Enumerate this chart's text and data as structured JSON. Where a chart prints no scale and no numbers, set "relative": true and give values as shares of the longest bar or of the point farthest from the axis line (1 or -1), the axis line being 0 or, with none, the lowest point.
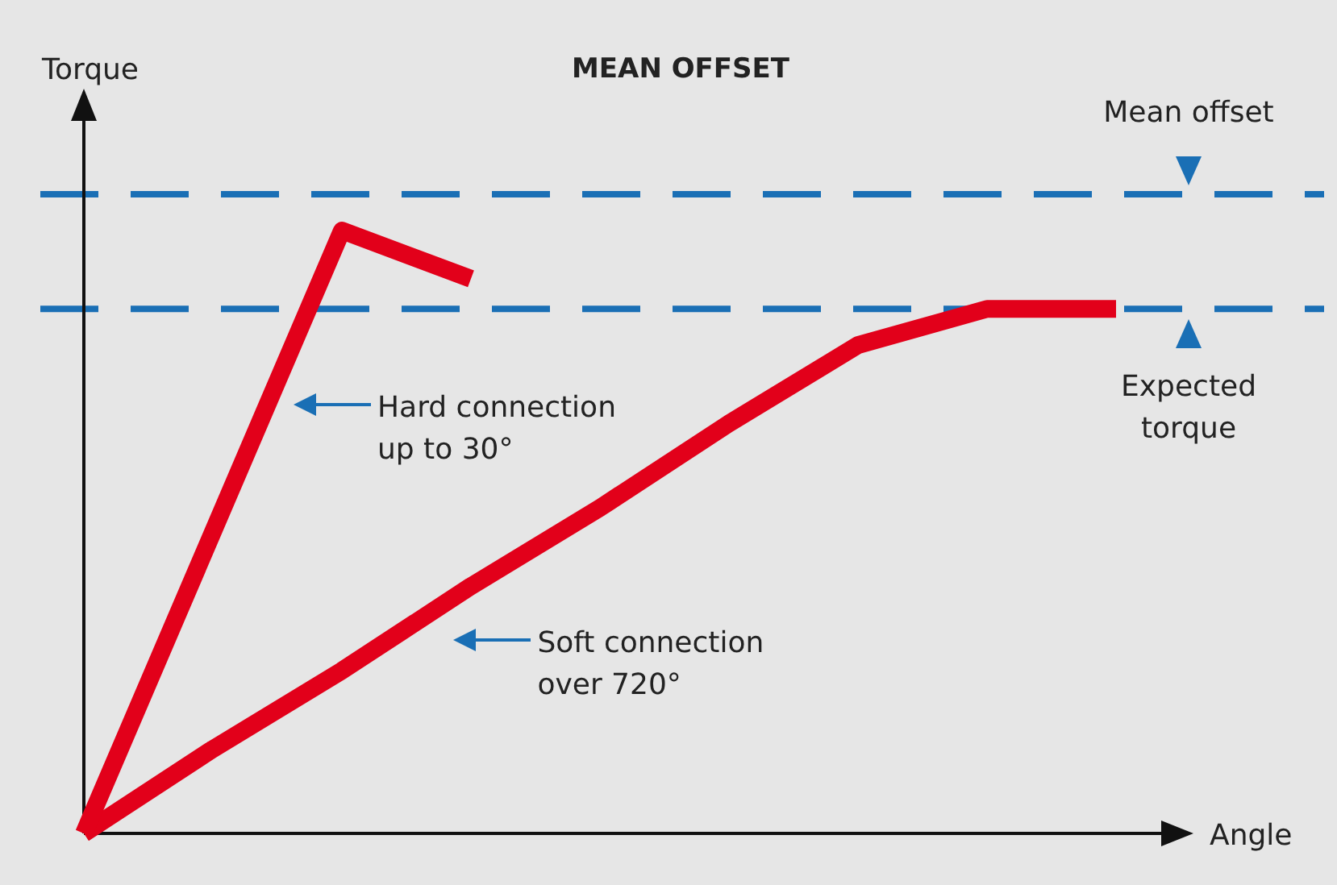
{
  "chart_data": {
    "type": "line",
    "title": "MEAN OFFSET",
    "xlabel": "Angle",
    "ylabel": "Torque",
    "relative": true,
    "marker": "none",
    "categories": [
      null,
      null,
      null,
      null,
      null,
      null,
      null,
      null,
      null
    ],
    "series": [
      {
        "color": "#e2001a",
        "values": [
          0,
          0.5,
          1,
          0.92,
          null,
          null,
          null,
          null,
          null
        ]
      },
      {
        "color": "#e2001a",
        "values": [
          0,
          0.14,
          0.27,
          0.41,
          0.54,
          0.68,
          0.81,
          0.87,
          0.87
        ]
      }
    ],
    "ref_lines": [
      {
        "axis": "y",
        "value": 1.06,
        "label": "Mean offset",
        "color": "#1a6fb5",
        "line_style": "dashed"
      },
      {
        "axis": "y",
        "value": 0.87,
        "label": "Expected torque",
        "color": "#1a6fb5",
        "line_style": "dashed"
      }
    ],
    "annotations": [
      "Hard connection up to 30°",
      "Soft connection over 720°"
    ]
  }
}
